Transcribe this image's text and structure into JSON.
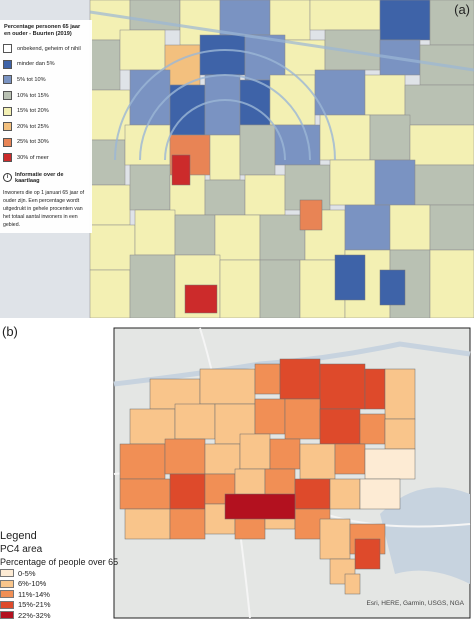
{
  "panel_a": {
    "label": "(a)",
    "legend": {
      "title": "Percentage personen 65 jaar en ouder - Buurten (2019)",
      "items": [
        {
          "label": "onbekend, geheim of nihil",
          "color": "#ffffff"
        },
        {
          "label": "minder dan 5%",
          "color": "#3e63a8"
        },
        {
          "label": "5% tot 10%",
          "color": "#7a93c2"
        },
        {
          "label": "10% tot 15%",
          "color": "#b9c1b3"
        },
        {
          "label": "15% tot 20%",
          "color": "#f3f0b3"
        },
        {
          "label": "20% tot 25%",
          "color": "#f3c07e"
        },
        {
          "label": "25% tot 30%",
          "color": "#e88455"
        },
        {
          "label": "30% of meer",
          "color": "#cc2b2b"
        }
      ],
      "info_title": "Informatie over de kaartlaag",
      "info_text": "Inwoners die op 1 januari 65 jaar of ouder zijn. Een percentage wordt uitgedrukt in gehele procenten van het totaal aantal inwoners in een gebied."
    }
  },
  "panel_b": {
    "label": "(b)",
    "legend": {
      "heading": "Legend",
      "layer": "PC4 area",
      "field": "Percentage of people over 65",
      "items": [
        {
          "label": "0-5%",
          "color": "#fdebd4"
        },
        {
          "label": "6%-10%",
          "color": "#f9c58b"
        },
        {
          "label": "11%-14%",
          "color": "#f18f55"
        },
        {
          "label": "15%-21%",
          "color": "#de4a2b"
        },
        {
          "label": "22%-32%",
          "color": "#b3111f"
        }
      ]
    },
    "attribution": "Esri, HERE, Garmin, USGS, NGA"
  }
}
